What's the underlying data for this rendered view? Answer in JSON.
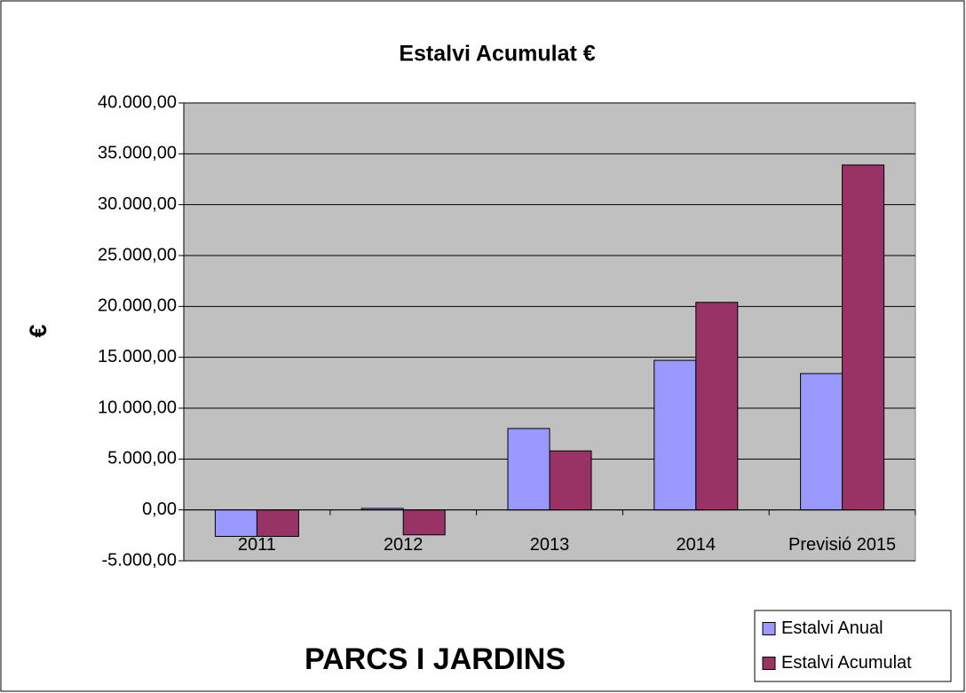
{
  "chart_data": {
    "type": "bar",
    "title": "Estalvi Acumulat €",
    "y_label": "€",
    "annotation": "PARCS I JARDINS",
    "categories": [
      "2011",
      "2012",
      "2013",
      "2014",
      "Previsió 2015"
    ],
    "series": [
      {
        "name": "Estalvi Anual",
        "color": "#9999ff",
        "values": [
          -2600,
          150,
          8000,
          14700,
          13400
        ]
      },
      {
        "name": "Estalvi Acumulat",
        "color": "#993366",
        "values": [
          -2600,
          -2450,
          5800,
          20400,
          33900
        ]
      }
    ],
    "ylim": [
      -5000,
      40000
    ],
    "yticks": [
      {
        "value": -5000,
        "label": "-5.000,00"
      },
      {
        "value": 0,
        "label": "0,00"
      },
      {
        "value": 5000,
        "label": "5.000,00"
      },
      {
        "value": 10000,
        "label": "10.000,00"
      },
      {
        "value": 15000,
        "label": "15.000,00"
      },
      {
        "value": 20000,
        "label": "20.000,00"
      },
      {
        "value": 25000,
        "label": "25.000,00"
      },
      {
        "value": 30000,
        "label": "30.000,00"
      },
      {
        "value": 35000,
        "label": "35.000,00"
      },
      {
        "value": 40000,
        "label": "40.000,00"
      }
    ],
    "grid": true,
    "plot_background": "#c0c0c0",
    "legend": "lower right"
  }
}
